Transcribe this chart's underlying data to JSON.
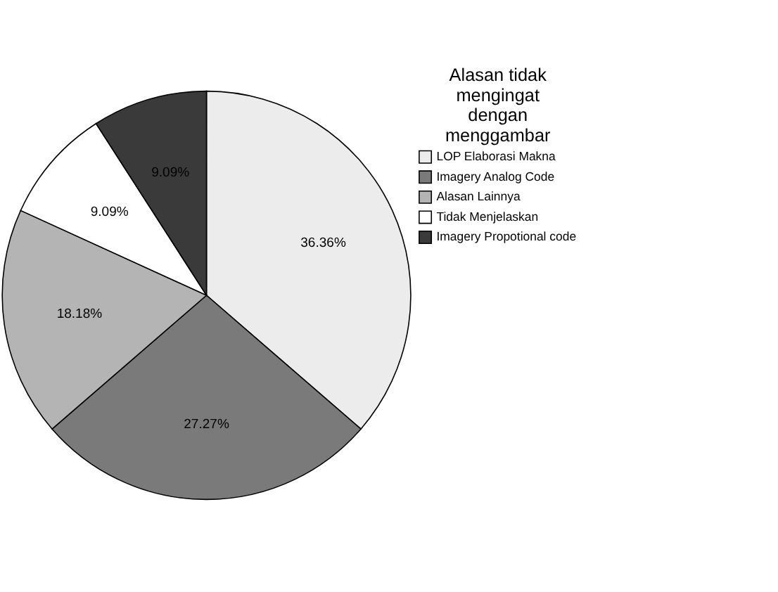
{
  "chart_data": {
    "type": "pie",
    "legend_title": "Alasan tidak mengingat dengan menggambar",
    "categories": [
      "LOP Elaborasi Makna",
      "Imagery Analog Code",
      "Alasan Lainnya",
      "Tidak Menjelaskan",
      "Imagery Propotional code"
    ],
    "values": [
      36.36,
      27.27,
      18.18,
      9.09,
      9.09
    ],
    "value_labels": [
      "36.36%",
      "27.27%",
      "18.18%",
      "9.09%",
      "9.09%"
    ],
    "colors": [
      "#ececec",
      "#7a7a7a",
      "#b4b4b4",
      "#ffffff",
      "#3a3a3a"
    ],
    "legend": "right"
  }
}
